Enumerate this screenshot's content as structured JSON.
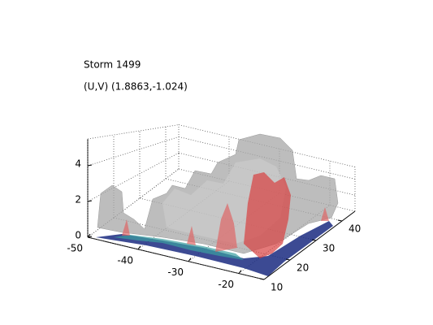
{
  "chart_data": {
    "type": "isosurface3d",
    "title": "Storm 1499",
    "subtitle": "(U,V) (1.8863,-1.024)",
    "xlim": [
      -50,
      -15
    ],
    "xticks": [
      -50,
      -40,
      -30,
      -20
    ],
    "ylim": [
      10,
      45
    ],
    "yticks": [
      10,
      20,
      30,
      40
    ],
    "zlim": [
      0,
      5.5
    ],
    "zticks": [
      0,
      2,
      4
    ],
    "grid": true
  }
}
